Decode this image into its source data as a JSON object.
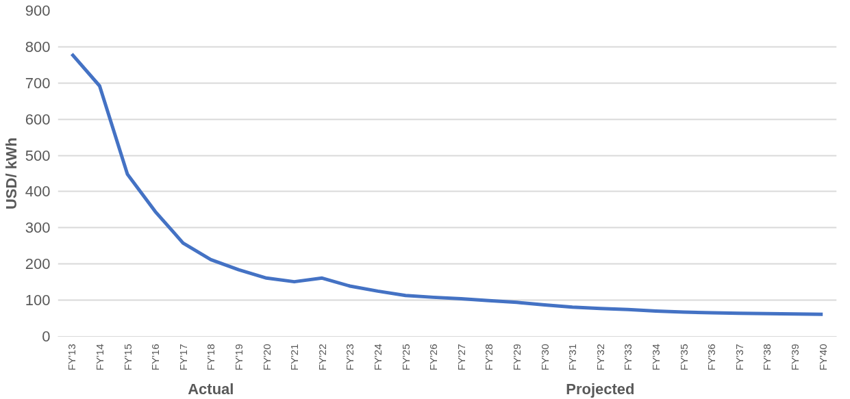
{
  "chart_data": {
    "type": "line",
    "ylabel": "USD/ kWh",
    "categories": [
      "FY'13",
      "FY'14",
      "FY'15",
      "FY'16",
      "FY'17",
      "FY'18",
      "FY'19",
      "FY'20",
      "FY'21",
      "FY'22",
      "FY'23",
      "FY'24",
      "FY'25",
      "FY'26",
      "FY'27",
      "FY'28",
      "FY'29",
      "FY'30",
      "FY'31",
      "FY'32",
      "FY'33",
      "FY'34",
      "FY'35",
      "FY'36",
      "FY'37",
      "FY'38",
      "FY'39",
      "FY'40"
    ],
    "series": [
      {
        "color": "#4472c4",
        "values": [
          780,
          692,
          448,
          345,
          258,
          212,
          184,
          161,
          151,
          161,
          139,
          125,
          113,
          108,
          104,
          99,
          94,
          87,
          81,
          77,
          74,
          70,
          67,
          65,
          64,
          63,
          62,
          61
        ]
      }
    ],
    "ylim": [
      0,
      900
    ],
    "yticks": [
      0,
      100,
      200,
      300,
      400,
      500,
      600,
      700,
      800,
      900
    ],
    "grid": "y",
    "marker": "none",
    "line_style": "solid",
    "annotations": [
      "Actual",
      "Projected"
    ]
  }
}
